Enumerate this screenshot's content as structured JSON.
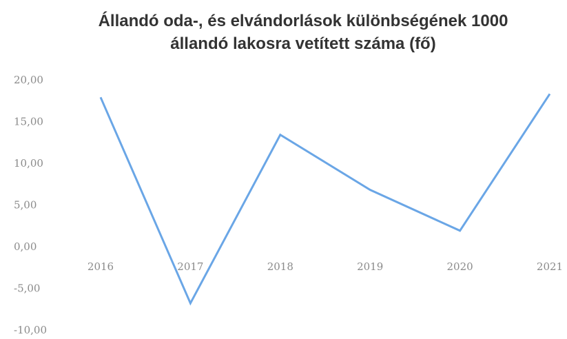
{
  "chart_data": {
    "type": "line",
    "title": "Állandó oda-, és elvándorlások különbségének 1000 állandó lakosra vetített száma (fő)",
    "categories": [
      "2016",
      "2017",
      "2018",
      "2019",
      "2020",
      "2021"
    ],
    "values": [
      18.0,
      -6.7,
      13.5,
      6.9,
      2.0,
      18.4
    ],
    "color": "#6aa6e6",
    "ylim": [
      -10,
      20
    ],
    "yticks": [
      {
        "value": -10,
        "label": "-10,00"
      },
      {
        "value": -5,
        "label": "-5,00"
      },
      {
        "value": 0,
        "label": "0,00"
      },
      {
        "value": 5,
        "label": "5,00"
      },
      {
        "value": 10,
        "label": "10,00"
      },
      {
        "value": 15,
        "label": "15,00"
      },
      {
        "value": 20,
        "label": "20,00"
      }
    ],
    "grid": false
  }
}
